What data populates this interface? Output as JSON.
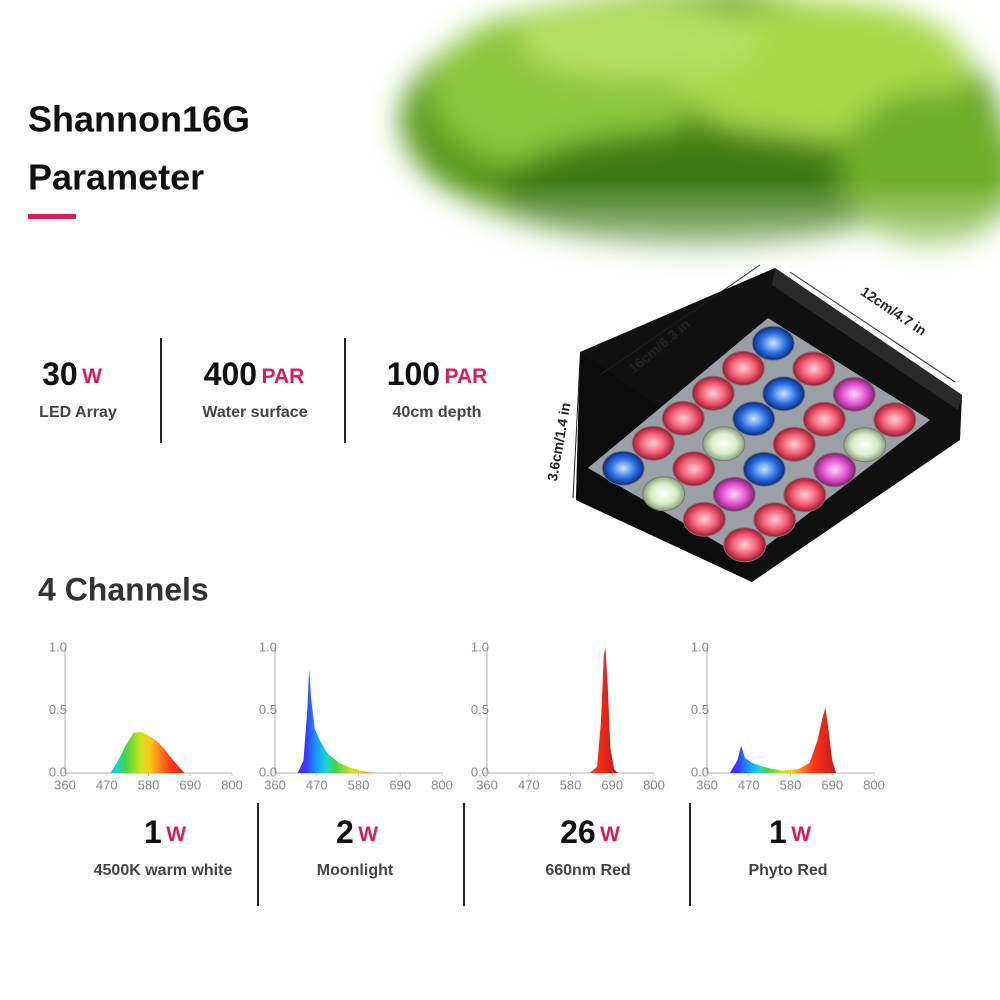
{
  "header": {
    "title_line1": "Shannon16G",
    "title_line2": "Parameter"
  },
  "specs": [
    {
      "value": 30,
      "unit": "W",
      "label": "LED Array"
    },
    {
      "value": 400,
      "unit": "PAR",
      "label": "Water surface"
    },
    {
      "value": 100,
      "unit": "PAR",
      "label": "40cm depth"
    }
  ],
  "dimensions": {
    "length": "16cm/6.3 in",
    "width": "12cm/4.7 in",
    "height": "3.6cm/1.4 in"
  },
  "channels_title": "4 Channels",
  "channels": [
    {
      "power": 1,
      "unit": "W",
      "label": "4500K warm white",
      "chart": {
        "type": "area",
        "xlim": [
          360,
          800
        ],
        "ylim": [
          0,
          1
        ],
        "xticks": [
          360,
          470,
          580,
          690,
          800
        ],
        "yticks": [
          {
            "value": 0,
            "label": "0.0"
          },
          {
            "value": 0.5,
            "label": "0.5"
          },
          {
            "value": 1,
            "label": "1.0"
          }
        ],
        "x": [
          480,
          500,
          520,
          540,
          560,
          580,
          600,
          620,
          640,
          660,
          675
        ],
        "values": [
          0,
          0.1,
          0.22,
          0.32,
          0.33,
          0.3,
          0.26,
          0.2,
          0.12,
          0.05,
          0
        ]
      }
    },
    {
      "power": 2,
      "unit": "W",
      "label": "Moonlight",
      "chart": {
        "type": "area",
        "xlim": [
          360,
          800
        ],
        "ylim": [
          0,
          1
        ],
        "xticks": [
          360,
          470,
          580,
          690,
          800
        ],
        "yticks": [
          {
            "value": 0,
            "label": "0.0"
          },
          {
            "value": 0.5,
            "label": "0.5"
          },
          {
            "value": 1,
            "label": "1.0"
          }
        ],
        "x": [
          420,
          435,
          445,
          450,
          455,
          465,
          480,
          500,
          530,
          560,
          600,
          620
        ],
        "values": [
          0,
          0.1,
          0.5,
          0.83,
          0.6,
          0.35,
          0.25,
          0.15,
          0.08,
          0.04,
          0.01,
          0
        ]
      }
    },
    {
      "power": 26,
      "unit": "W",
      "label": "660nm Red",
      "chart": {
        "type": "area",
        "xlim": [
          360,
          800
        ],
        "ylim": [
          0,
          1
        ],
        "xticks": [
          360,
          470,
          580,
          690,
          800
        ],
        "yticks": [
          {
            "value": 0,
            "label": "0.0"
          },
          {
            "value": 0.5,
            "label": "0.5"
          },
          {
            "value": 1,
            "label": "1.0"
          }
        ],
        "x": [
          630,
          650,
          660,
          668,
          672,
          678,
          685,
          695,
          705
        ],
        "values": [
          0,
          0.05,
          0.4,
          0.95,
          1.0,
          0.7,
          0.2,
          0.03,
          0
        ]
      }
    },
    {
      "power": 1,
      "unit": "W",
      "label": "Phyto Red",
      "chart": {
        "type": "area",
        "xlim": [
          360,
          800
        ],
        "ylim": [
          0,
          1
        ],
        "xticks": [
          360,
          470,
          580,
          690,
          800
        ],
        "yticks": [
          {
            "value": 0,
            "label": "0.0"
          },
          {
            "value": 0.5,
            "label": "0.5"
          },
          {
            "value": 1,
            "label": "1.0"
          }
        ],
        "x": [
          420,
          440,
          450,
          460,
          480,
          520,
          560,
          600,
          630,
          650,
          665,
          672,
          680,
          690,
          700
        ],
        "values": [
          0,
          0.1,
          0.22,
          0.12,
          0.08,
          0.04,
          0.02,
          0.03,
          0.08,
          0.25,
          0.45,
          0.52,
          0.35,
          0.1,
          0
        ]
      }
    }
  ]
}
